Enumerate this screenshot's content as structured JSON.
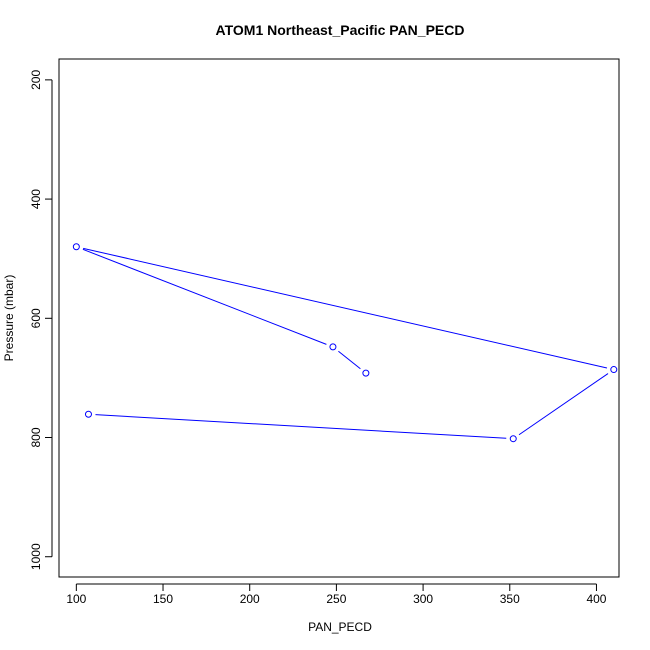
{
  "chart_data": {
    "type": "line",
    "title": "ATOM1 Northeast_Pacific PAN_PECD",
    "xlabel": "PAN_PECD",
    "ylabel": "Pressure (mbar)",
    "xlim": [
      90,
      413
    ],
    "ylim": [
      1034,
      165
    ],
    "y_reversed": true,
    "x_ticks": [
      100,
      150,
      200,
      250,
      300,
      350,
      400
    ],
    "y_ticks": [
      200,
      400,
      600,
      800,
      1000
    ],
    "grid": false,
    "legend": "none",
    "series": [
      {
        "color": "#0000ff",
        "marker": "open-circle",
        "points": [
          {
            "x": 267,
            "y": 692
          },
          {
            "x": 248,
            "y": 648
          },
          {
            "x": 100,
            "y": 480
          },
          {
            "x": 410,
            "y": 686
          },
          {
            "x": 352,
            "y": 802
          },
          {
            "x": 107,
            "y": 761
          }
        ]
      }
    ]
  }
}
